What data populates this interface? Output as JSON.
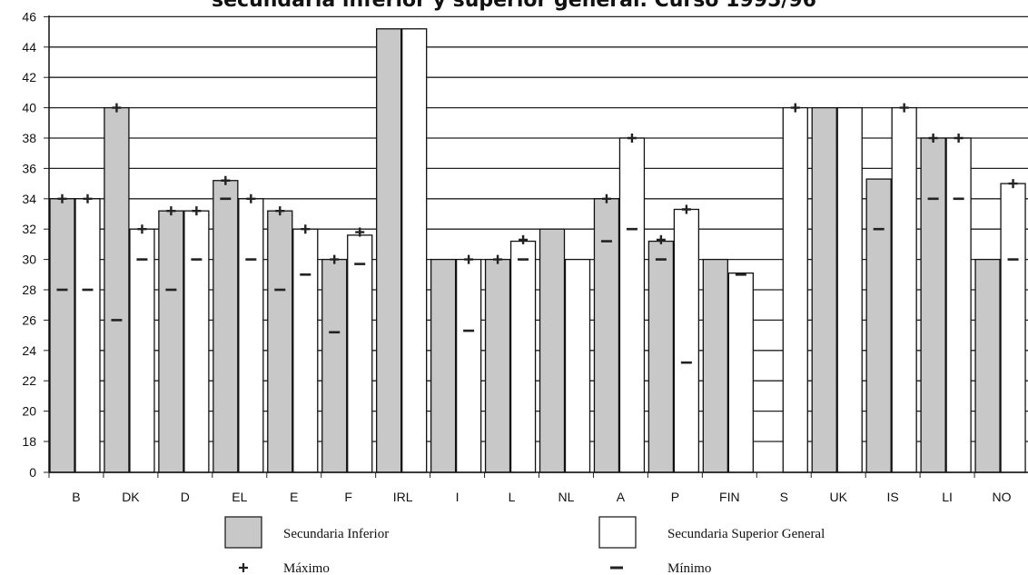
{
  "chart_data": {
    "type": "bar",
    "title": "secundaria inferior y superior general. Curso 1995/96",
    "categories": [
      "B",
      "DK",
      "D",
      "EL",
      "E",
      "F",
      "IRL",
      "I",
      "L",
      "NL",
      "A",
      "P",
      "FIN",
      "S",
      "UK",
      "IS",
      "LI",
      "NO"
    ],
    "y_ticks": [
      "0",
      "18",
      "20",
      "22",
      "24",
      "26",
      "28",
      "30",
      "32",
      "34",
      "36",
      "38",
      "40",
      "42",
      "44",
      "46"
    ],
    "ylim": [
      16,
      46
    ],
    "axis_break": "0 to 18 compressed",
    "grid": "horizontal",
    "series": [
      {
        "name": "Secundaria Inferior",
        "color": "#c8c8c8",
        "values": [
          34,
          40,
          33.2,
          35.2,
          33.2,
          30,
          45.2,
          30,
          30,
          32,
          34,
          31.2,
          30,
          null,
          40,
          35.3,
          38,
          30
        ],
        "max": [
          34,
          40,
          33.2,
          35.2,
          33.2,
          30,
          null,
          null,
          30,
          null,
          34,
          31.3,
          null,
          null,
          null,
          null,
          38,
          null
        ],
        "min": [
          28,
          26,
          28,
          34,
          28,
          25.2,
          null,
          null,
          null,
          null,
          31.2,
          30,
          null,
          null,
          null,
          32,
          34,
          null
        ]
      },
      {
        "name": "Secundaria Superior General",
        "color": "#ffffff",
        "values": [
          34,
          32,
          33.2,
          34,
          32,
          31.6,
          45.2,
          30,
          31.2,
          30,
          38,
          33.3,
          29.1,
          40,
          40,
          40,
          38,
          35
        ],
        "max": [
          34,
          32,
          33.2,
          34,
          32,
          31.8,
          null,
          30,
          31.3,
          null,
          38,
          33.3,
          null,
          40,
          null,
          40,
          38,
          35
        ],
        "min": [
          28,
          30,
          30,
          30,
          29,
          29.7,
          null,
          25.3,
          30,
          null,
          32,
          23.2,
          29,
          null,
          null,
          null,
          34,
          30
        ]
      }
    ],
    "legend": {
      "placement": "bottom",
      "items": [
        "Secundaria Inferior",
        "Secundaria Superior General",
        "Máximo",
        "Mínimo"
      ]
    }
  }
}
